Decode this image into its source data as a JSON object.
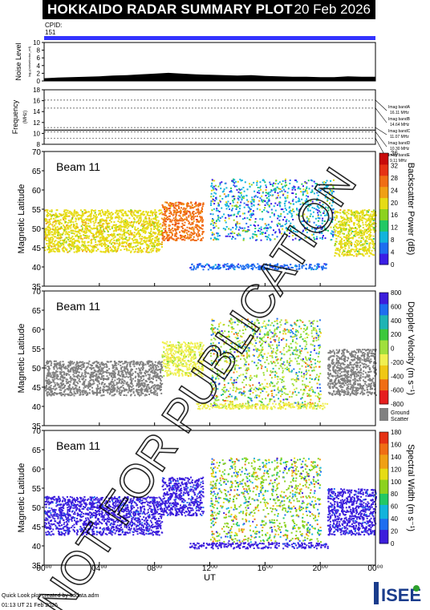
{
  "header": {
    "title": "HOKKAIDO RADAR SUMMARY PLOT",
    "date": "20 Feb 2026"
  },
  "cpid": {
    "label": "CPID:",
    "value": "151"
  },
  "watermark": "NOT FOR PUBLICATION",
  "footer": {
    "line1": "Quick Look plot created by sddata.adm",
    "line2": "01:13 UT 21 Feb 2026"
  },
  "logo": {
    "text": "ISEE"
  },
  "colors": {
    "cpid_bar": "#3333ff",
    "ground_scatter": "#808080",
    "background": "#ffffff"
  },
  "chart_data": [
    {
      "id": "noise",
      "type": "area",
      "ylabel": "Noise Level",
      "ylabel_small": "log₁₀(noise/noise_ref)",
      "ylim": [
        0,
        10
      ],
      "yticks": [
        0,
        2,
        4,
        6,
        8,
        10
      ],
      "x_hours": [
        0,
        1,
        2,
        3,
        4,
        5,
        6,
        7,
        8,
        9,
        10,
        11,
        12,
        13,
        14,
        15,
        16,
        17,
        18,
        19,
        20,
        21,
        22,
        23,
        24
      ],
      "values": [
        0.7,
        0.9,
        1.0,
        1.1,
        1.2,
        1.4,
        1.5,
        1.7,
        1.9,
        2.1,
        1.9,
        1.7,
        1.6,
        1.5,
        1.4,
        1.5,
        1.3,
        1.2,
        1.1,
        1.1,
        1.0,
        1.0,
        1.2,
        1.1,
        1.1
      ]
    },
    {
      "id": "frequency",
      "type": "line",
      "ylabel": "Frequency",
      "yunit": "(MHz)",
      "ylim": [
        8,
        18
      ],
      "yticks": [
        8,
        10,
        12,
        14,
        16,
        18
      ],
      "series": [
        {
          "name": "",
          "x": [
            0,
            24
          ],
          "values": [
            10.6,
            10.6
          ]
        }
      ],
      "imaging_bands": [
        {
          "label": "Imag bandA",
          "freq": "16.11 MHz",
          "value": 16.11
        },
        {
          "label": "Imag bandB",
          "freq": "14.64 MHz",
          "value": 14.64
        },
        {
          "label": "Imag bandC",
          "freq": "11.07 MHz",
          "value": 11.07
        },
        {
          "label": "Imag bandD",
          "freq": "10.30 MHz",
          "value": 10.3
        },
        {
          "label": "Imag bandE",
          "freq": "9.11 MHz",
          "value": 9.11
        }
      ]
    },
    {
      "id": "power",
      "type": "heatmap",
      "beam": "Beam 11",
      "ylabel": "Magnetic Latitude",
      "ylim": [
        35,
        70
      ],
      "yticks": [
        35,
        40,
        45,
        50,
        55,
        60,
        65,
        70
      ],
      "colorbar": {
        "label": "Backscatter Power (dB)",
        "range": [
          0,
          36
        ],
        "ticks": [
          0,
          4,
          8,
          12,
          16,
          20,
          24,
          28,
          32,
          36
        ]
      },
      "regions": [
        {
          "start_hr": 0,
          "end_hr": 8.5,
          "lat_low": 44,
          "lat_high": 55,
          "value": 20
        },
        {
          "start_hr": 8.5,
          "end_hr": 11.5,
          "lat_low": 47,
          "lat_high": 57,
          "value": 26
        },
        {
          "start_hr": 12,
          "end_hr": 21,
          "lat_low": 47,
          "lat_high": 63,
          "value": 8
        },
        {
          "start_hr": 21,
          "end_hr": 24,
          "lat_low": 43,
          "lat_high": 55,
          "value": 18
        },
        {
          "start_hr": 10.5,
          "end_hr": 20.5,
          "lat_low": 39.5,
          "lat_high": 41,
          "value": 4
        }
      ]
    },
    {
      "id": "velocity",
      "type": "heatmap",
      "beam": "Beam 11",
      "ylabel": "Magnetic Latitude",
      "ylim": [
        35,
        70
      ],
      "yticks": [
        35,
        40,
        45,
        50,
        55,
        60,
        65,
        70
      ],
      "colorbar": {
        "label": "Doppler Velocity (m s⁻¹)",
        "range": [
          -800,
          800
        ],
        "ticks": [
          -800,
          -600,
          -400,
          -200,
          0,
          200,
          400,
          600,
          800
        ]
      },
      "ground_scatter_label": [
        "Ground",
        "Scatter"
      ],
      "regions": [
        {
          "start_hr": 0,
          "end_hr": 8.5,
          "lat_low": 43,
          "lat_high": 52,
          "value": "ground"
        },
        {
          "start_hr": 8.5,
          "end_hr": 11.5,
          "lat_low": 48,
          "lat_high": 57,
          "value": -100
        },
        {
          "start_hr": 12,
          "end_hr": 20,
          "lat_low": 40,
          "lat_high": 63,
          "value": 50
        },
        {
          "start_hr": 20.5,
          "end_hr": 24,
          "lat_low": 43,
          "lat_high": 55,
          "value": "ground"
        },
        {
          "start_hr": 11,
          "end_hr": 20.5,
          "lat_low": 39.5,
          "lat_high": 41,
          "value": -150
        }
      ]
    },
    {
      "id": "width",
      "type": "heatmap",
      "beam": "Beam 11",
      "ylabel": "Magnetic Latitude",
      "xlabel": "UT",
      "xticks": [
        "00⁰⁰",
        "04⁰⁰",
        "08⁰⁰",
        "12⁰⁰",
        "16⁰⁰",
        "20⁰⁰",
        "00⁰⁰"
      ],
      "ylim": [
        35,
        70
      ],
      "yticks": [
        35,
        40,
        45,
        50,
        55,
        60,
        65,
        70
      ],
      "colorbar": {
        "label": "Spectral Width (m s⁻¹)",
        "range": [
          0,
          180
        ],
        "ticks": [
          0,
          20,
          40,
          60,
          80,
          100,
          120,
          140,
          160,
          180
        ]
      },
      "regions": [
        {
          "start_hr": 0,
          "end_hr": 8.5,
          "lat_low": 43,
          "lat_high": 53,
          "value": 6
        },
        {
          "start_hr": 8.5,
          "end_hr": 11.5,
          "lat_low": 48,
          "lat_high": 58,
          "value": 14
        },
        {
          "start_hr": 12,
          "end_hr": 20,
          "lat_low": 41,
          "lat_high": 63,
          "value": 80
        },
        {
          "start_hr": 20.5,
          "end_hr": 24,
          "lat_low": 43,
          "lat_high": 55,
          "value": 6
        },
        {
          "start_hr": 10.5,
          "end_hr": 20.5,
          "lat_low": 39.5,
          "lat_high": 41,
          "value": 4
        }
      ]
    }
  ]
}
